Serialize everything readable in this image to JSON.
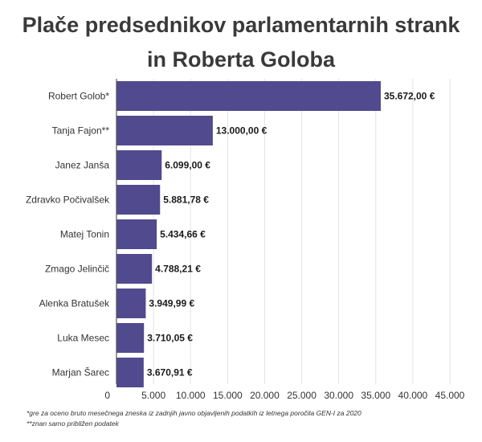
{
  "chart_data": {
    "type": "bar",
    "orientation": "horizontal",
    "title": "Plače predsednikov parlamentarnih strank in Roberta Goloba",
    "title_lines": [
      "Plače predsednikov parlamentarnih strank",
      "in Roberta Goloba"
    ],
    "categories": [
      "Robert Golob*",
      "Tanja Fajon**",
      "Janez Janša",
      "Zdravko Počivalšek",
      "Matej Tonin",
      "Zmago Jelinčič",
      "Alenka Bratušek",
      "Luka Mesec",
      "Marjan Šarec"
    ],
    "values": [
      35672.0,
      13000.0,
      6099.0,
      5881.78,
      5434.66,
      4788.21,
      3949.99,
      3710.05,
      3670.91
    ],
    "value_labels": [
      "35.672,00 €",
      "13.000,00 €",
      "6.099,00 €",
      "5.881,78 €",
      "5.434,66 €",
      "4.788,21 €",
      "3.949,99 €",
      "3.710,05 €",
      "3.670,91 €"
    ],
    "xlim": [
      0,
      45000
    ],
    "xticks": [
      0,
      5000,
      10000,
      15000,
      20000,
      25000,
      30000,
      35000,
      40000,
      45000
    ],
    "xtick_labels": [
      "0",
      "5.000",
      "10.000",
      "15.000",
      "20.000",
      "25.000",
      "30.000",
      "35.000",
      "40.000",
      "45.000"
    ],
    "xlabel": "",
    "ylabel": "",
    "grid": "vertical",
    "bar_color": "#514a8e"
  },
  "notes": [
    "*gre za oceno bruto mesečnega zneska iz zadnjih javno objavljenih podatkih iz letnega poročila GEN-I za 2020",
    "**znan samo približen podatek"
  ]
}
